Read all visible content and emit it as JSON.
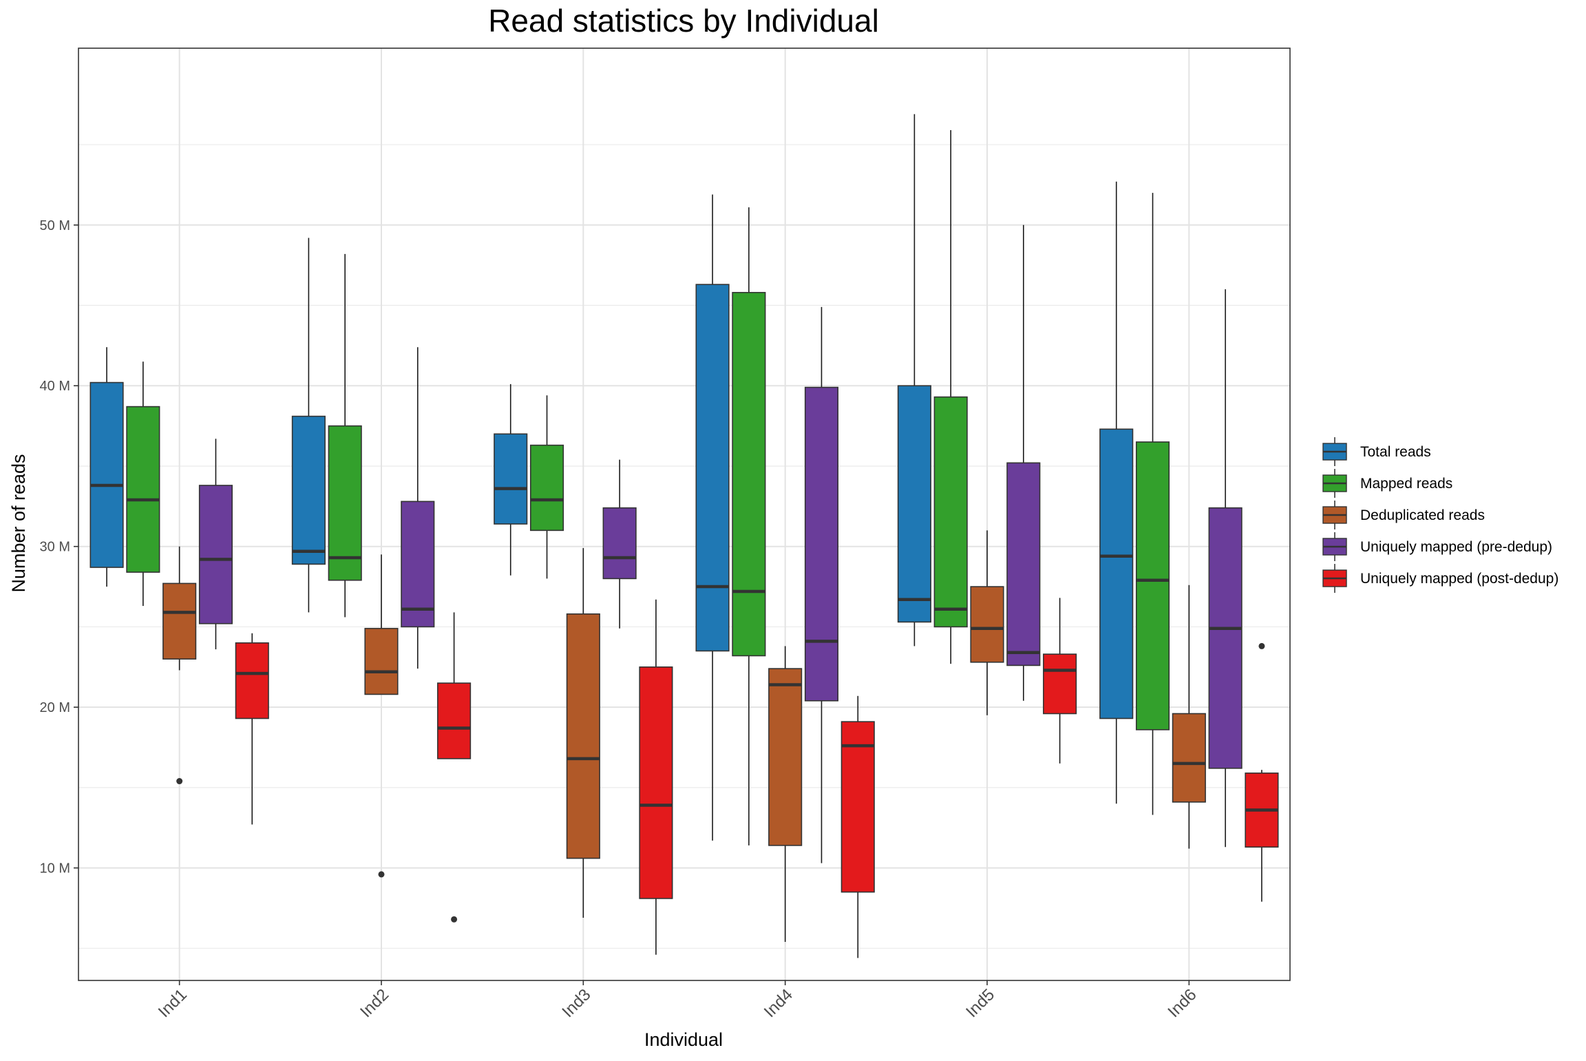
{
  "chart_data": {
    "type": "boxplot",
    "title": "Read statistics by Individual",
    "xlabel": "Individual",
    "ylabel": "Number of reads",
    "categories": [
      "Ind1",
      "Ind2",
      "Ind3",
      "Ind4",
      "Ind5",
      "Ind6"
    ],
    "yticks": [
      10,
      20,
      30,
      40,
      50
    ],
    "ytick_labels": [
      "10 M",
      "20 M",
      "30 M",
      "40 M",
      "50 M"
    ],
    "ylim": [
      3,
      61
    ],
    "grid": true,
    "legend_position": "right",
    "series": [
      {
        "name": "Total reads",
        "color": "#1F78B4",
        "boxes": [
          {
            "whisker_low": 27.5,
            "q1": 28.7,
            "median": 33.8,
            "q3": 40.2,
            "whisker_high": 42.4,
            "outliers": []
          },
          {
            "whisker_low": 25.9,
            "q1": 28.9,
            "median": 29.7,
            "q3": 38.1,
            "whisker_high": 49.2,
            "outliers": []
          },
          {
            "whisker_low": 28.2,
            "q1": 31.4,
            "median": 33.6,
            "q3": 37.0,
            "whisker_high": 40.1,
            "outliers": []
          },
          {
            "whisker_low": 11.7,
            "q1": 23.5,
            "median": 27.5,
            "q3": 46.3,
            "whisker_high": 51.9,
            "outliers": []
          },
          {
            "whisker_low": 23.8,
            "q1": 25.3,
            "median": 26.7,
            "q3": 40.0,
            "whisker_high": 56.9,
            "outliers": []
          },
          {
            "whisker_low": 14.0,
            "q1": 19.3,
            "median": 29.4,
            "q3": 37.3,
            "whisker_high": 52.7,
            "outliers": []
          }
        ]
      },
      {
        "name": "Mapped reads",
        "color": "#33A02C",
        "boxes": [
          {
            "whisker_low": 26.3,
            "q1": 28.4,
            "median": 32.9,
            "q3": 38.7,
            "whisker_high": 41.5,
            "outliers": []
          },
          {
            "whisker_low": 25.6,
            "q1": 27.9,
            "median": 29.3,
            "q3": 37.5,
            "whisker_high": 48.2,
            "outliers": []
          },
          {
            "whisker_low": 28.0,
            "q1": 31.0,
            "median": 32.9,
            "q3": 36.3,
            "whisker_high": 39.4,
            "outliers": []
          },
          {
            "whisker_low": 11.4,
            "q1": 23.2,
            "median": 27.2,
            "q3": 45.8,
            "whisker_high": 51.1,
            "outliers": []
          },
          {
            "whisker_low": 22.7,
            "q1": 25.0,
            "median": 26.1,
            "q3": 39.3,
            "whisker_high": 55.9,
            "outliers": []
          },
          {
            "whisker_low": 13.3,
            "q1": 18.6,
            "median": 27.9,
            "q3": 36.5,
            "whisker_high": 52.0,
            "outliers": []
          }
        ]
      },
      {
        "name": "Deduplicated reads",
        "color": "#B15928",
        "boxes": [
          {
            "whisker_low": 22.3,
            "q1": 23.0,
            "median": 25.9,
            "q3": 27.7,
            "whisker_high": 30.0,
            "outliers": [
              15.4
            ]
          },
          {
            "whisker_low": 20.8,
            "q1": 20.8,
            "median": 22.2,
            "q3": 24.9,
            "whisker_high": 29.5,
            "outliers": [
              9.6
            ]
          },
          {
            "whisker_low": 6.9,
            "q1": 10.6,
            "median": 16.8,
            "q3": 25.8,
            "whisker_high": 29.9,
            "outliers": []
          },
          {
            "whisker_low": 5.4,
            "q1": 11.4,
            "median": 21.4,
            "q3": 22.4,
            "whisker_high": 23.8,
            "outliers": []
          },
          {
            "whisker_low": 19.5,
            "q1": 22.8,
            "median": 24.9,
            "q3": 27.5,
            "whisker_high": 31.0,
            "outliers": []
          },
          {
            "whisker_low": 11.2,
            "q1": 14.1,
            "median": 16.5,
            "q3": 19.6,
            "whisker_high": 27.6,
            "outliers": []
          }
        ]
      },
      {
        "name": "Uniquely mapped (pre-dedup)",
        "color": "#6A3D9A",
        "boxes": [
          {
            "whisker_low": 23.6,
            "q1": 25.2,
            "median": 29.2,
            "q3": 33.8,
            "whisker_high": 36.7,
            "outliers": []
          },
          {
            "whisker_low": 22.4,
            "q1": 25.0,
            "median": 26.1,
            "q3": 32.8,
            "whisker_high": 42.4,
            "outliers": []
          },
          {
            "whisker_low": 24.9,
            "q1": 28.0,
            "median": 29.3,
            "q3": 32.4,
            "whisker_high": 35.4,
            "outliers": []
          },
          {
            "whisker_low": 10.3,
            "q1": 20.4,
            "median": 24.1,
            "q3": 39.9,
            "whisker_high": 44.9,
            "outliers": []
          },
          {
            "whisker_low": 20.4,
            "q1": 22.6,
            "median": 23.4,
            "q3": 35.2,
            "whisker_high": 50.0,
            "outliers": []
          },
          {
            "whisker_low": 11.3,
            "q1": 16.2,
            "median": 24.9,
            "q3": 32.4,
            "whisker_high": 46.0,
            "outliers": []
          }
        ]
      },
      {
        "name": "Uniquely mapped (post-dedup)",
        "color": "#E31A1C",
        "boxes": [
          {
            "whisker_low": 12.7,
            "q1": 19.3,
            "median": 22.1,
            "q3": 24.0,
            "whisker_high": 24.6,
            "outliers": []
          },
          {
            "whisker_low": 16.8,
            "q1": 16.8,
            "median": 18.7,
            "q3": 21.5,
            "whisker_high": 25.9,
            "outliers": [
              6.8
            ]
          },
          {
            "whisker_low": 4.6,
            "q1": 8.1,
            "median": 13.9,
            "q3": 22.5,
            "whisker_high": 26.7,
            "outliers": []
          },
          {
            "whisker_low": 4.4,
            "q1": 8.5,
            "median": 17.6,
            "q3": 19.1,
            "whisker_high": 20.7,
            "outliers": []
          },
          {
            "whisker_low": 16.5,
            "q1": 19.6,
            "median": 22.3,
            "q3": 23.3,
            "whisker_high": 26.8,
            "outliers": []
          },
          {
            "whisker_low": 7.9,
            "q1": 11.3,
            "median": 13.6,
            "q3": 15.9,
            "whisker_high": 16.1,
            "outliers": [
              23.8
            ]
          }
        ]
      }
    ]
  }
}
